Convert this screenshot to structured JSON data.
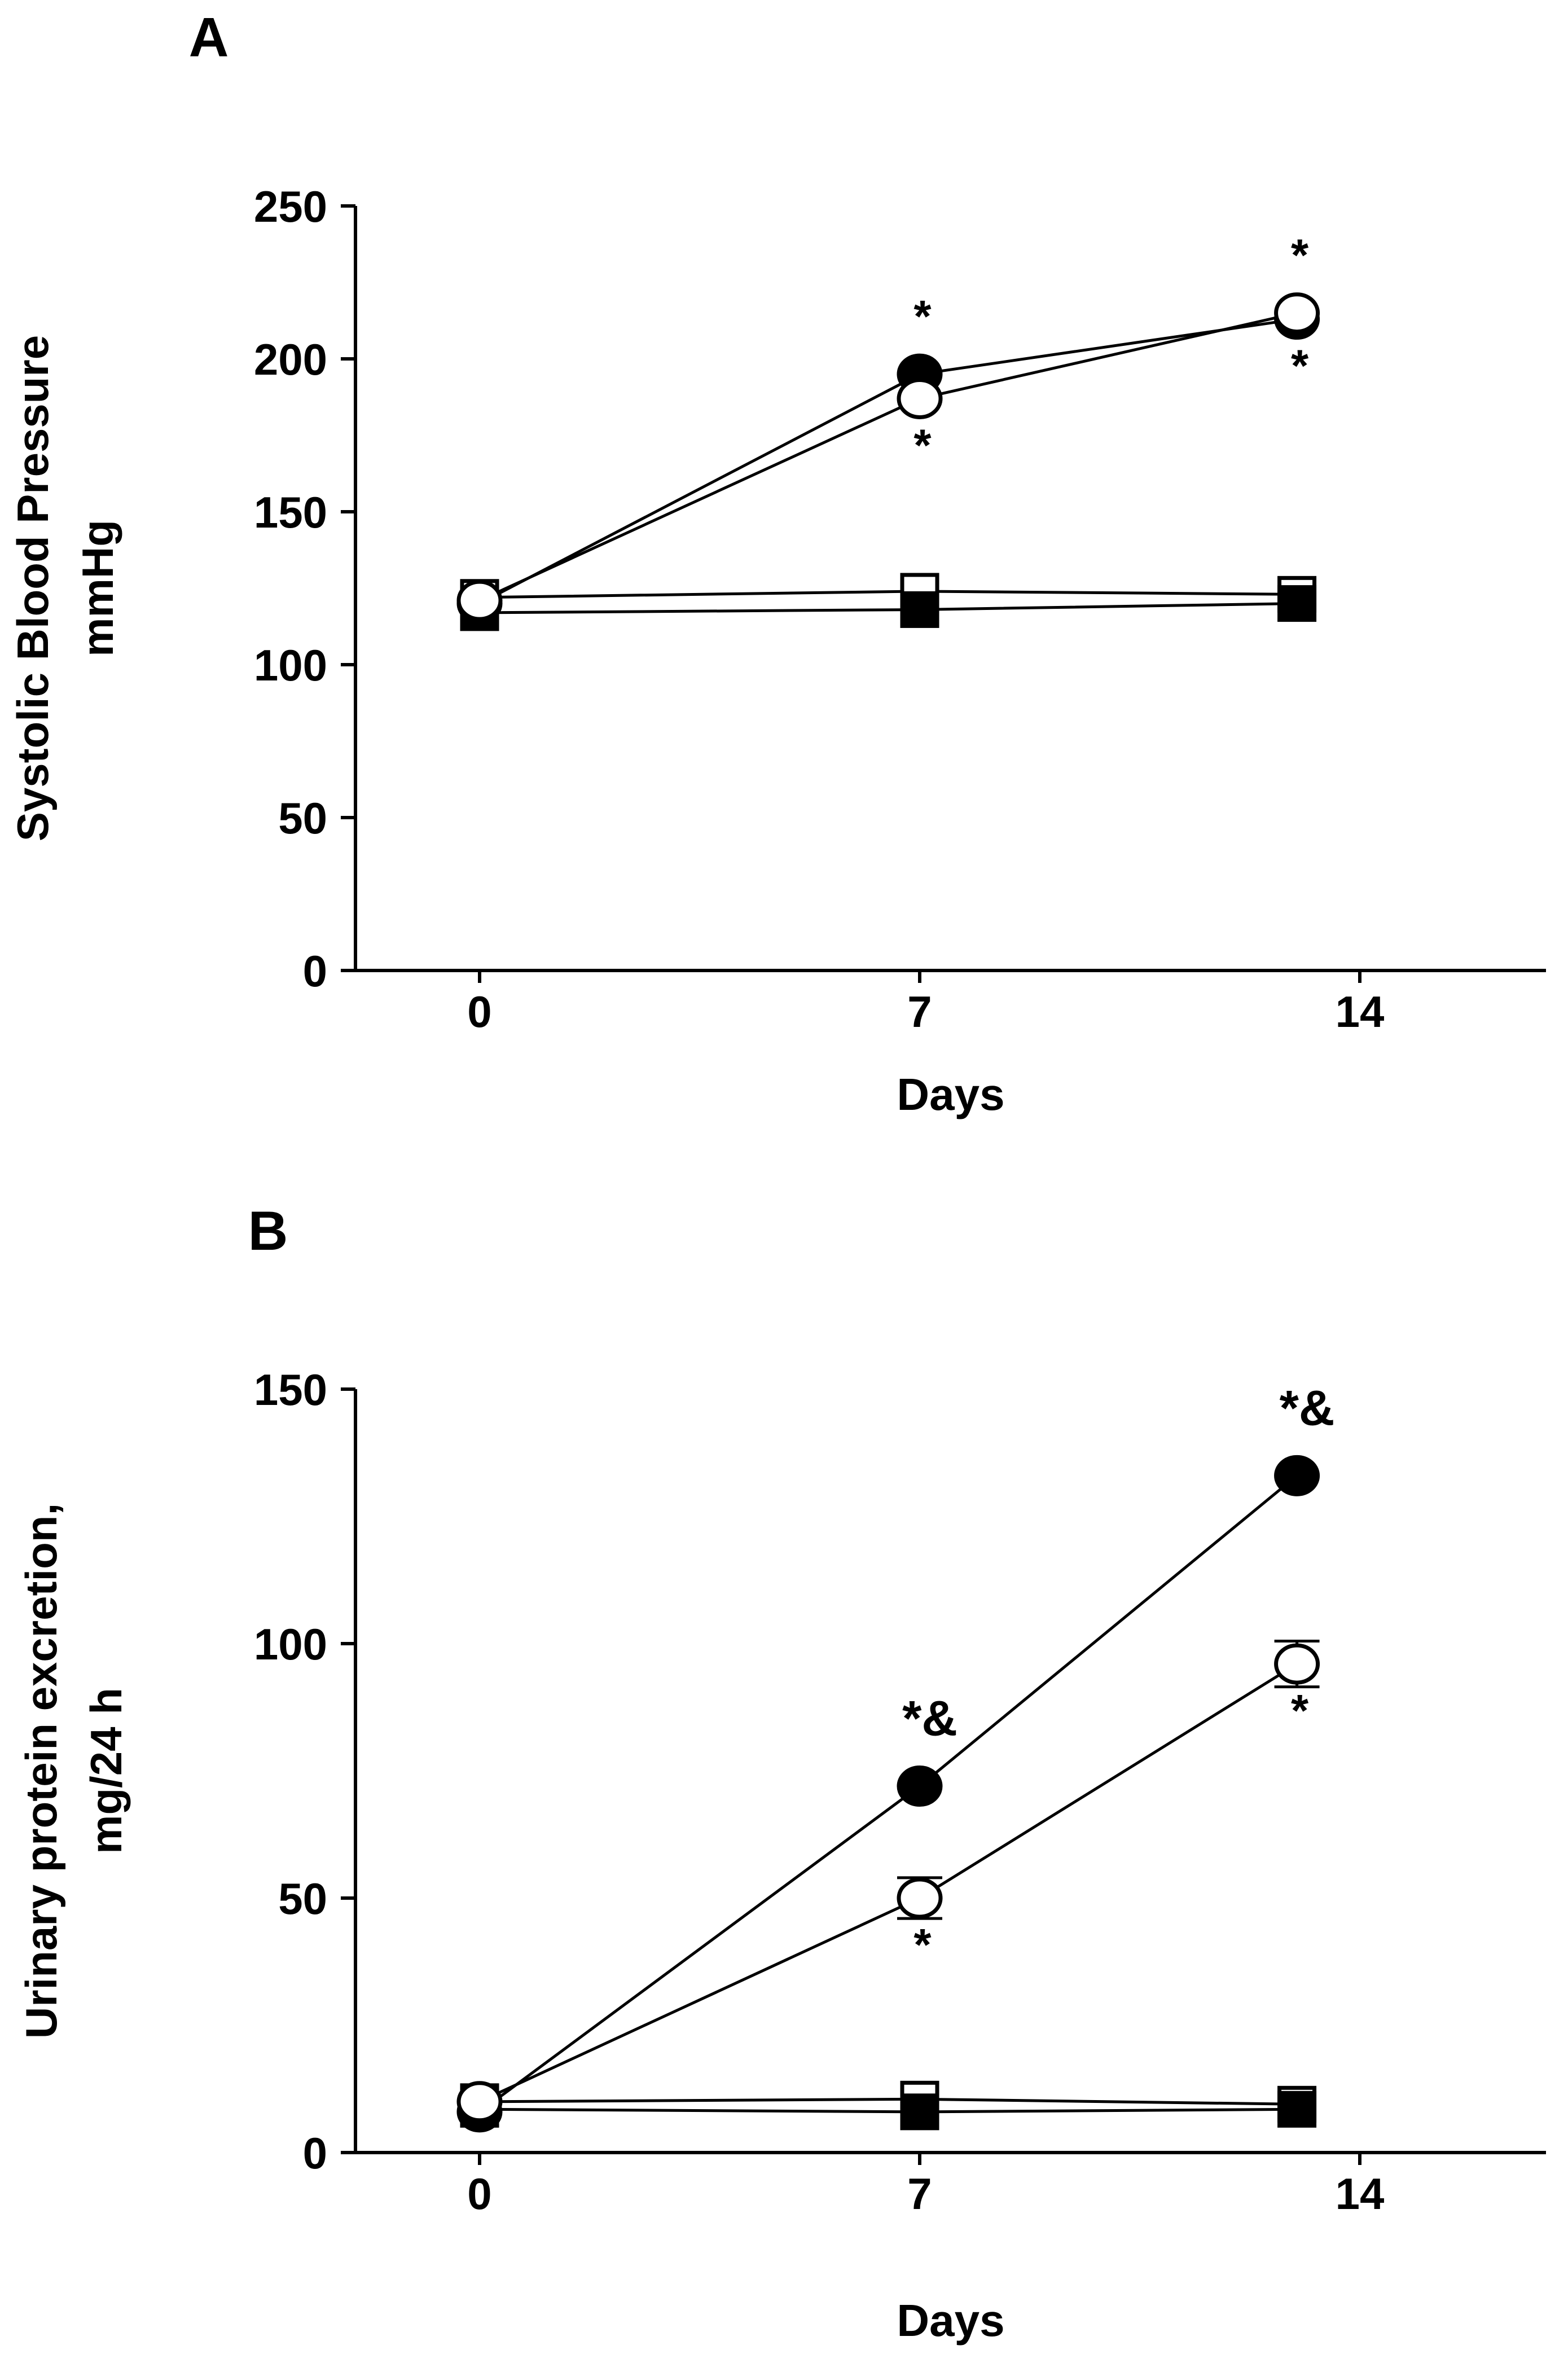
{
  "chart_data": [
    {
      "panel_label": "A",
      "type": "line",
      "title": "",
      "ylabel_lines": [
        "Systolic Blood Pressure",
        "mmHg"
      ],
      "xlabel": "Days",
      "x_ticks": [
        0,
        7,
        14
      ],
      "x_tick_labels": [
        "0",
        "7",
        "14"
      ],
      "y_ticks": [
        0,
        50,
        100,
        150,
        200,
        250
      ],
      "y_tick_labels": [
        "0",
        "50",
        "100",
        "150",
        "200",
        "250"
      ],
      "xlim": [
        -2,
        17
      ],
      "ylim": [
        0,
        250
      ],
      "grid": false,
      "series": [
        {
          "name": "filled-circle",
          "marker": "circle",
          "fill": "#000000",
          "x": [
            0,
            7,
            13
          ],
          "y": [
            120,
            195,
            213
          ],
          "annotations": [
            {
              "x": 7,
              "text": "*",
              "side": "above"
            },
            {
              "x": 13,
              "text": "*",
              "side": "below"
            }
          ]
        },
        {
          "name": "open-circle",
          "marker": "circle",
          "fill": "#ffffff",
          "x": [
            0,
            7,
            13
          ],
          "y": [
            121,
            187,
            215
          ],
          "annotations": [
            {
              "x": 7,
              "text": "*",
              "side": "below"
            },
            {
              "x": 13,
              "text": "*",
              "side": "above"
            }
          ]
        },
        {
          "name": "open-square",
          "marker": "square",
          "fill": "#ffffff",
          "x": [
            0,
            7,
            13
          ],
          "y": [
            122,
            124,
            123
          ],
          "annotations": []
        },
        {
          "name": "filled-square",
          "marker": "square",
          "fill": "#000000",
          "x": [
            0,
            7,
            13
          ],
          "y": [
            117,
            118,
            120
          ],
          "annotations": []
        }
      ]
    },
    {
      "panel_label": "B",
      "type": "line",
      "title": "",
      "ylabel_lines": [
        "Urinary protein excretion,",
        "mg/24 h"
      ],
      "xlabel": "Days",
      "x_ticks": [
        0,
        7,
        14
      ],
      "x_tick_labels": [
        "0",
        "7",
        "14"
      ],
      "y_ticks": [
        0,
        50,
        100,
        150
      ],
      "y_tick_labels": [
        "0",
        "50",
        "100",
        "150"
      ],
      "xlim": [
        -2,
        17
      ],
      "ylim": [
        0,
        150
      ],
      "grid": false,
      "series": [
        {
          "name": "filled-circle",
          "marker": "circle",
          "fill": "#000000",
          "x": [
            0,
            7,
            13
          ],
          "y": [
            8,
            72,
            133
          ],
          "annotations": [
            {
              "x": 7,
              "text": "*&",
              "side": "above"
            },
            {
              "x": 13,
              "text": "*&",
              "side": "above"
            }
          ]
        },
        {
          "name": "open-circle",
          "marker": "circle",
          "fill": "#ffffff",
          "x": [
            0,
            7,
            13
          ],
          "y": [
            10,
            50,
            96
          ],
          "error": [
            0,
            4,
            4.5
          ],
          "annotations": [
            {
              "x": 7,
              "text": "*",
              "side": "below"
            },
            {
              "x": 13,
              "text": "*",
              "side": "below"
            }
          ]
        },
        {
          "name": "open-square",
          "marker": "square",
          "fill": "#ffffff",
          "x": [
            0,
            7,
            13
          ],
          "y": [
            10,
            10.5,
            9.5
          ],
          "annotations": []
        },
        {
          "name": "filled-square",
          "marker": "square",
          "fill": "#000000",
          "x": [
            0,
            7,
            13
          ],
          "y": [
            8.5,
            8,
            8.5
          ],
          "annotations": []
        }
      ]
    }
  ]
}
